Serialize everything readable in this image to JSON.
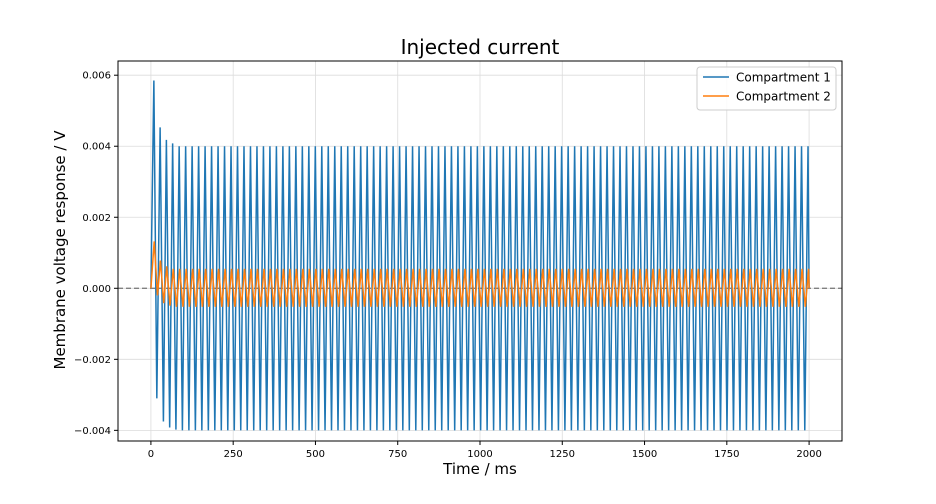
{
  "chart_data": {
    "type": "line",
    "title": "Injected current",
    "xlabel": "Time / ms",
    "ylabel": "Membrane voltage response / V",
    "xlim": [
      -100,
      2100
    ],
    "ylim": [
      -0.0043,
      0.0064
    ],
    "xticks": [
      0,
      250,
      500,
      750,
      1000,
      1250,
      1500,
      1750,
      2000
    ],
    "xtick_labels": [
      "0",
      "250",
      "500",
      "750",
      "1000",
      "1250",
      "1500",
      "1750",
      "2000"
    ],
    "yticks": [
      -0.004,
      -0.002,
      0.0,
      0.002,
      0.004,
      0.006
    ],
    "ytick_labels": [
      "−0.004",
      "−0.002",
      "0.000",
      "0.002",
      "0.004",
      "0.006"
    ],
    "grid": true,
    "legend_position": "top-right",
    "reference_line": {
      "y": 0.0,
      "style": "dashed",
      "color": "#808080"
    },
    "series": [
      {
        "name": "Compartment 1",
        "color": "#1f77b4",
        "description": "oscillation, ~20 ms period, 0 to 2000 ms",
        "steady_max": 0.004,
        "steady_min": -0.004,
        "peaks": [
          [
            9,
            0.00585
          ],
          [
            28,
            0.00453
          ],
          [
            47,
            0.00418
          ],
          [
            66,
            0.00408
          ]
        ],
        "troughs": [
          [
            18,
            -0.0031
          ],
          [
            38,
            -0.00375
          ],
          [
            57,
            -0.00392
          ],
          [
            76,
            -0.00398
          ]
        ]
      },
      {
        "name": "Compartment 2",
        "color": "#ff7f0e",
        "description": "oscillation, ~20 ms period, 0 to 2000 ms",
        "steady_max": 0.00055,
        "steady_min": -0.00052,
        "peaks": [
          [
            10,
            0.00132
          ],
          [
            29,
            0.00078
          ],
          [
            48,
            0.00062
          ]
        ],
        "troughs": [
          [
            20,
            -0.0002
          ],
          [
            39,
            -0.00042
          ],
          [
            58,
            -0.00049
          ]
        ]
      }
    ]
  }
}
